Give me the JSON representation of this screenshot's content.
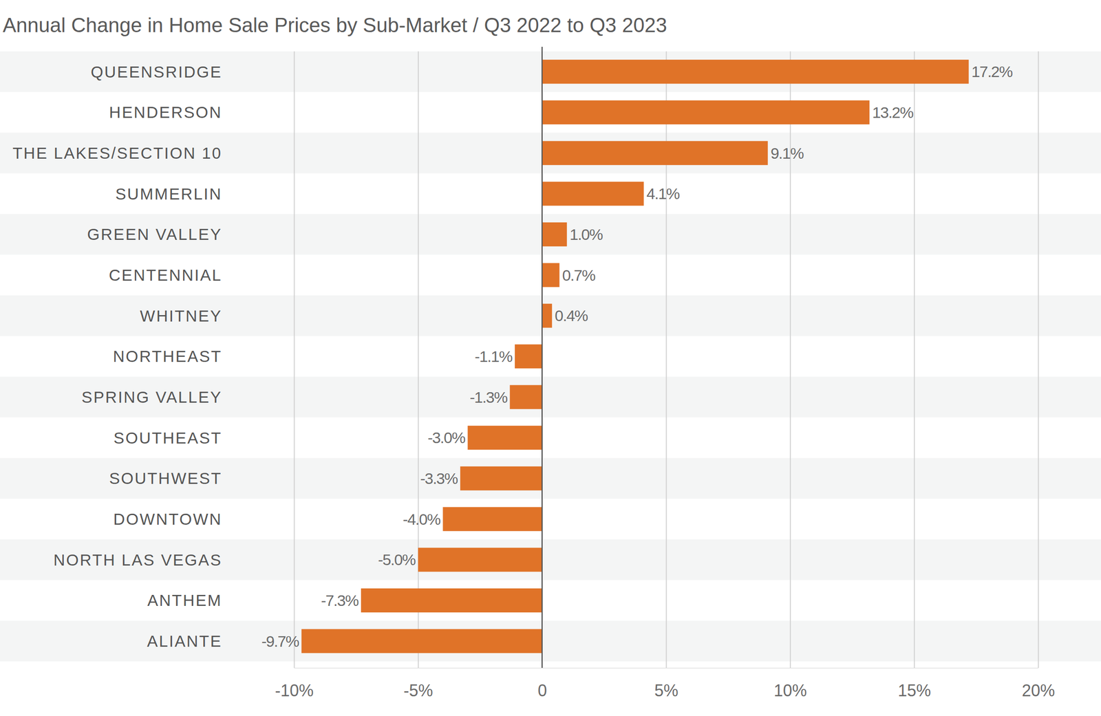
{
  "chart_data": {
    "type": "bar",
    "orientation": "horizontal",
    "title": "Annual Change in Home Sale Prices by Sub-Market / Q3 2022 to Q3 2023",
    "categories": [
      "QUEENSRIDGE",
      "HENDERSON",
      "THE LAKES/SECTION 10",
      "SUMMERLIN",
      "GREEN VALLEY",
      "CENTENNIAL",
      "WHITNEY",
      "NORTHEAST",
      "SPRING VALLEY",
      "SOUTHEAST",
      "SOUTHWEST",
      "DOWNTOWN",
      "NORTH LAS VEGAS",
      "ANTHEM",
      "ALIANTE"
    ],
    "values": [
      17.2,
      13.2,
      9.1,
      4.1,
      1.0,
      0.7,
      0.4,
      -1.1,
      -1.3,
      -3.0,
      -3.3,
      -4.0,
      -5.0,
      -7.3,
      -9.7
    ],
    "value_labels": [
      "17.2%",
      "13.2%",
      "9.1%",
      "4.1%",
      "1.0%",
      "0.7%",
      "0.4%",
      "-1.1%",
      "-1.3%",
      "-3.0%",
      "-3.3%",
      "-4.0%",
      "-5.0%",
      "-7.3%",
      "-9.7%"
    ],
    "color": "#e07328",
    "xlim": [
      -10,
      20
    ],
    "xticks": [
      {
        "value": -10,
        "label": "-10%"
      },
      {
        "value": -5,
        "label": "-5%"
      },
      0,
      {
        "value": 5,
        "label": "5%"
      },
      {
        "value": 10,
        "label": "10%"
      },
      {
        "value": 15,
        "label": "15%"
      },
      {
        "value": 20,
        "label": "20%"
      }
    ],
    "grid": true,
    "data_labels": true
  }
}
